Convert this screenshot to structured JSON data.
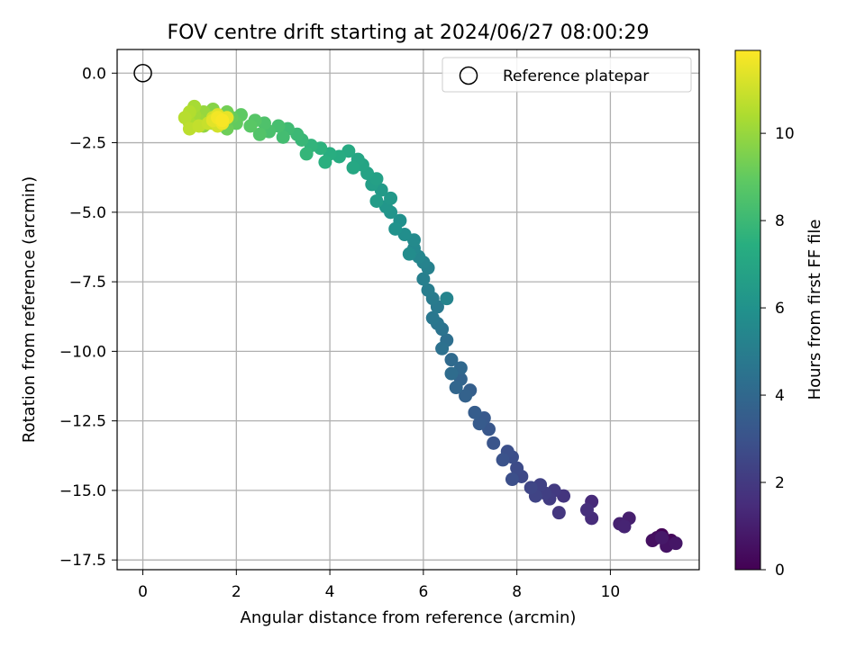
{
  "chart_data": {
    "type": "scatter",
    "title": "FOV centre drift starting at 2024/06/27 08:00:29",
    "xlabel": "Angular distance from reference (arcmin)",
    "ylabel": "Rotation from reference (arcmin)",
    "xlim": [
      -0.55,
      11.9
    ],
    "ylim": [
      -17.85,
      0.85
    ],
    "xticks": [
      0,
      2,
      4,
      6,
      8,
      10
    ],
    "xtick_labels": [
      "0",
      "2",
      "4",
      "6",
      "8",
      "10"
    ],
    "yticks": [
      0,
      -2.5,
      -5,
      -7.5,
      -10,
      -12.5,
      -15,
      -17.5
    ],
    "ytick_labels": [
      "0.0",
      "−2.5",
      "−5.0",
      "−7.5",
      "−10.0",
      "−12.5",
      "−15.0",
      "−17.5"
    ],
    "grid": true,
    "legend": {
      "placement": "upper right",
      "entries": [
        {
          "label": "Reference platepar",
          "marker": "open-circle"
        }
      ]
    },
    "reference_point": {
      "x": 0,
      "y": 0
    },
    "colorbar": {
      "label": "Hours from first FF file",
      "colormap": "viridis",
      "range": [
        0,
        11.9
      ],
      "ticks": [
        0,
        2,
        4,
        6,
        8,
        10
      ],
      "tick_labels": [
        "0",
        "2",
        "4",
        "6",
        "8",
        "10"
      ]
    },
    "colors": {
      "viridis_low": "#440154",
      "viridis_mid": "#21918c",
      "viridis_high": "#fde725",
      "grid": "#b0b0b0"
    },
    "series": [
      {
        "points": [
          [
            11.1,
            -16.6,
            0.1
          ],
          [
            11.3,
            -16.8,
            0.2
          ],
          [
            11.2,
            -16.9,
            0.3
          ],
          [
            11.0,
            -16.7,
            0.4
          ],
          [
            10.9,
            -16.8,
            0.5
          ],
          [
            11.2,
            -17.0,
            0.6
          ],
          [
            11.4,
            -16.9,
            0.7
          ],
          [
            11.1,
            -16.7,
            0.8
          ],
          [
            10.4,
            -16.0,
            1.0
          ],
          [
            10.2,
            -16.2,
            1.1
          ],
          [
            10.3,
            -16.3,
            1.2
          ],
          [
            9.6,
            -15.4,
            1.4
          ],
          [
            9.6,
            -16.0,
            1.5
          ],
          [
            9.5,
            -15.7,
            1.6
          ],
          [
            9.0,
            -15.2,
            1.8
          ],
          [
            8.9,
            -15.8,
            1.9
          ],
          [
            8.8,
            -15.0,
            2.0
          ],
          [
            8.7,
            -15.3,
            2.1
          ],
          [
            8.6,
            -15.1,
            2.2
          ],
          [
            8.5,
            -14.8,
            2.3
          ],
          [
            8.4,
            -15.2,
            2.4
          ],
          [
            8.3,
            -14.9,
            2.5
          ],
          [
            8.1,
            -14.5,
            2.6
          ],
          [
            8.0,
            -14.2,
            2.7
          ],
          [
            7.9,
            -13.8,
            2.8
          ],
          [
            7.9,
            -14.6,
            2.85
          ],
          [
            7.8,
            -13.6,
            2.9
          ],
          [
            7.7,
            -13.9,
            3.0
          ],
          [
            7.5,
            -13.3,
            3.1
          ],
          [
            7.4,
            -12.8,
            3.2
          ],
          [
            7.3,
            -12.4,
            3.3
          ],
          [
            7.2,
            -12.6,
            3.4
          ],
          [
            7.1,
            -12.2,
            3.5
          ],
          [
            7.0,
            -11.4,
            3.6
          ],
          [
            6.9,
            -11.6,
            3.7
          ],
          [
            6.8,
            -11.0,
            3.8
          ],
          [
            6.7,
            -11.3,
            3.9
          ],
          [
            6.8,
            -10.6,
            4.0
          ],
          [
            6.6,
            -10.3,
            4.1
          ],
          [
            6.6,
            -10.8,
            4.2
          ],
          [
            6.5,
            -9.6,
            4.3
          ],
          [
            6.4,
            -9.9,
            4.4
          ],
          [
            6.4,
            -9.2,
            4.5
          ],
          [
            6.3,
            -9.0,
            4.6
          ],
          [
            6.2,
            -8.8,
            4.7
          ],
          [
            6.3,
            -8.4,
            4.8
          ],
          [
            6.2,
            -8.1,
            4.9
          ],
          [
            6.1,
            -7.8,
            5.0
          ],
          [
            6.0,
            -7.4,
            5.1
          ],
          [
            6.1,
            -7.0,
            5.2
          ],
          [
            6.0,
            -6.8,
            5.3
          ],
          [
            6.5,
            -8.1,
            5.35
          ],
          [
            5.9,
            -6.6,
            5.4
          ],
          [
            5.8,
            -6.3,
            5.5
          ],
          [
            5.8,
            -6.0,
            5.6
          ],
          [
            5.7,
            -6.5,
            5.7
          ],
          [
            5.6,
            -5.8,
            5.8
          ],
          [
            5.5,
            -5.3,
            5.9
          ],
          [
            5.4,
            -5.6,
            6.0
          ],
          [
            5.3,
            -5.0,
            6.1
          ],
          [
            5.2,
            -4.8,
            6.2
          ],
          [
            5.3,
            -4.5,
            6.3
          ],
          [
            5.1,
            -4.2,
            6.4
          ],
          [
            5.0,
            -4.6,
            6.5
          ],
          [
            4.9,
            -4.0,
            6.6
          ],
          [
            5.0,
            -3.8,
            6.7
          ],
          [
            4.8,
            -3.6,
            6.8
          ],
          [
            4.7,
            -3.3,
            6.9
          ],
          [
            4.6,
            -3.1,
            7.0
          ],
          [
            4.5,
            -3.4,
            7.1
          ],
          [
            4.4,
            -2.8,
            7.2
          ],
          [
            4.2,
            -3.0,
            7.3
          ],
          [
            4.0,
            -2.9,
            7.4
          ],
          [
            3.9,
            -3.2,
            7.5
          ],
          [
            3.8,
            -2.7,
            7.6
          ],
          [
            3.6,
            -2.6,
            7.7
          ],
          [
            3.5,
            -2.9,
            7.8
          ],
          [
            3.4,
            -2.4,
            7.9
          ],
          [
            3.3,
            -2.2,
            8.0
          ],
          [
            3.1,
            -2.0,
            8.1
          ],
          [
            3.0,
            -2.3,
            8.2
          ],
          [
            2.9,
            -1.9,
            8.3
          ],
          [
            2.7,
            -2.1,
            8.4
          ],
          [
            2.6,
            -1.8,
            8.5
          ],
          [
            2.5,
            -2.2,
            8.6
          ],
          [
            2.4,
            -1.7,
            8.7
          ],
          [
            2.3,
            -1.9,
            8.8
          ],
          [
            2.1,
            -1.5,
            8.9
          ],
          [
            2.0,
            -1.8,
            9.0
          ],
          [
            1.9,
            -1.6,
            9.1
          ],
          [
            1.8,
            -2.0,
            9.2
          ],
          [
            1.8,
            -1.4,
            9.3
          ],
          [
            1.7,
            -1.7,
            9.4
          ],
          [
            1.6,
            -1.5,
            9.5
          ],
          [
            1.5,
            -1.8,
            9.6
          ],
          [
            1.5,
            -1.3,
            9.7
          ],
          [
            1.4,
            -1.6,
            9.8
          ],
          [
            1.3,
            -1.9,
            9.9
          ],
          [
            1.3,
            -1.4,
            10.0
          ],
          [
            1.2,
            -1.7,
            10.1
          ],
          [
            1.1,
            -1.5,
            10.2
          ],
          [
            1.1,
            -1.2,
            10.3
          ],
          [
            1.0,
            -1.8,
            10.4
          ],
          [
            1.0,
            -1.4,
            10.5
          ],
          [
            0.9,
            -1.6,
            10.6
          ],
          [
            1.0,
            -2.0,
            10.7
          ],
          [
            1.2,
            -1.9,
            10.8
          ],
          [
            1.4,
            -1.8,
            10.9
          ],
          [
            1.5,
            -1.6,
            11.0
          ],
          [
            1.6,
            -1.9,
            11.1
          ],
          [
            1.7,
            -1.7,
            11.2
          ],
          [
            1.6,
            -1.5,
            11.3
          ],
          [
            1.5,
            -1.7,
            11.4
          ],
          [
            1.8,
            -1.6,
            11.5
          ],
          [
            1.7,
            -1.8,
            11.6
          ],
          [
            1.6,
            -1.6,
            11.7
          ],
          [
            1.7,
            -1.7,
            11.8
          ]
        ]
      }
    ]
  }
}
